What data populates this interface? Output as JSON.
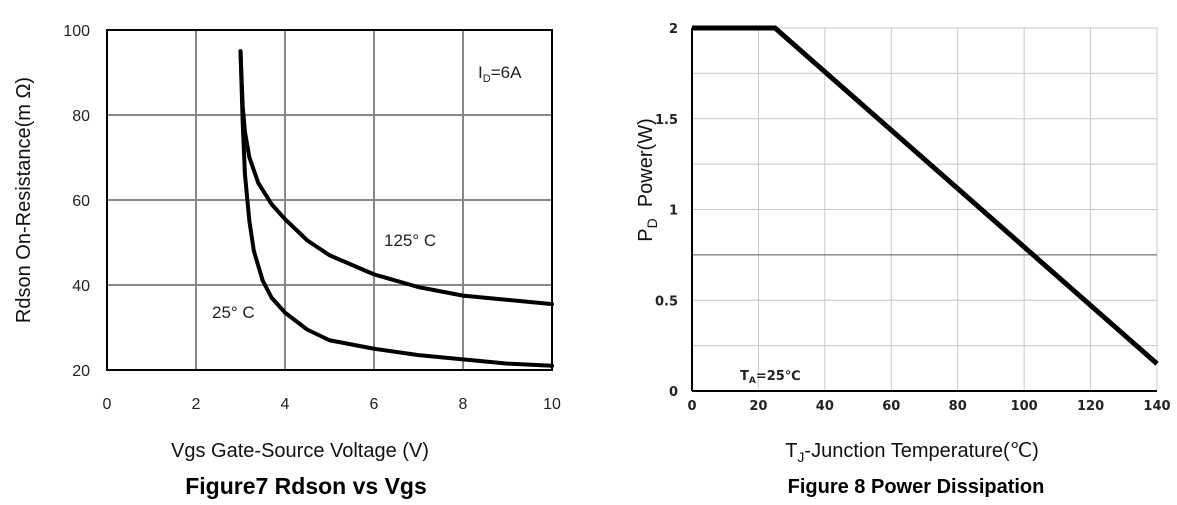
{
  "chart_data": [
    {
      "type": "line",
      "title": "Figure7 Rdson vs Vgs",
      "xlabel": "Vgs Gate-Source Voltage (V)",
      "ylabel": "Rdson On-Resistance(m Ω)",
      "xlim": [
        0,
        10
      ],
      "ylim": [
        20,
        100
      ],
      "xticks": [
        "0",
        "2",
        "4",
        "6",
        "8",
        "10"
      ],
      "yticks": [
        "20",
        "40",
        "60",
        "80",
        "100"
      ],
      "grid": true,
      "annotations": [
        {
          "text": "I",
          "sub": "D",
          "rest": "=6A"
        }
      ],
      "series": [
        {
          "name": "125° C",
          "x": [
            3.0,
            3.05,
            3.1,
            3.2,
            3.4,
            3.7,
            4.0,
            4.5,
            5.0,
            6.0,
            7.0,
            8.0,
            9.0,
            10.0
          ],
          "y": [
            95,
            82,
            76,
            70,
            64,
            59,
            55.5,
            50.5,
            47,
            42.5,
            39.5,
            37.5,
            36.5,
            35.5
          ]
        },
        {
          "name": "25° C",
          "x": [
            3.0,
            3.05,
            3.1,
            3.2,
            3.3,
            3.5,
            3.7,
            4.0,
            4.5,
            5.0,
            6.0,
            7.0,
            8.0,
            9.0,
            10.0
          ],
          "y": [
            95,
            78,
            66,
            55,
            48,
            41,
            37,
            33.5,
            29.5,
            27,
            25,
            23.5,
            22.5,
            21.5,
            21
          ]
        }
      ],
      "series_labels": [
        "125° C",
        "25° C"
      ]
    },
    {
      "type": "line",
      "title": "Figure 8 Power Dissipation",
      "xlabel": {
        "main": "T",
        "sub": "J",
        "rest": "-Junction Temperature(℃)"
      },
      "ylabel": {
        "main": "P",
        "sub": "D",
        "rest": "  Power(W)"
      },
      "xlim": [
        0,
        140
      ],
      "ylim": [
        0,
        2
      ],
      "xticks": [
        "0",
        "20",
        "40",
        "60",
        "80",
        "100",
        "120",
        "140"
      ],
      "yticks": [
        "0",
        "0.5",
        "1",
        "1.5",
        "2"
      ],
      "grid": true,
      "annotations": [
        {
          "text": "T",
          "sub": "A",
          "rest": "=25℃"
        }
      ],
      "series": [
        {
          "x": [
            0,
            25,
            140
          ],
          "y": [
            2,
            2,
            0.15
          ]
        }
      ]
    }
  ]
}
